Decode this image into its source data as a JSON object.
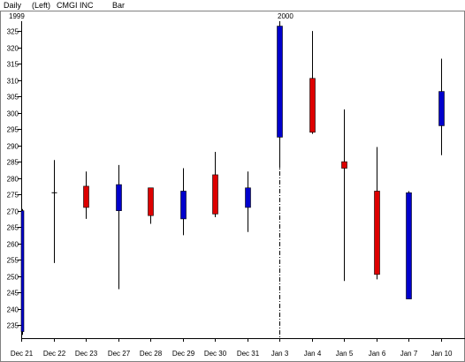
{
  "header": {
    "interval": "Daily",
    "axis_side": "(Left)",
    "symbol": "CMGI INC",
    "style": "Bar",
    "year_start": "1999",
    "year_break": "2000"
  },
  "colors": {
    "up": "#0000cc",
    "down": "#dd0000",
    "doji": "#000000",
    "axis": "#000000",
    "border": "#808080",
    "background": "#ffffff"
  },
  "chart_data": {
    "type": "candlestick",
    "title": "",
    "y_axis_side": "left",
    "ylim": [
      231,
      328
    ],
    "yticks": [
      235,
      240,
      245,
      250,
      255,
      260,
      265,
      270,
      275,
      280,
      285,
      290,
      295,
      300,
      305,
      310,
      315,
      320,
      325
    ],
    "year_break_after": "Dec 31",
    "categories": [
      "Dec 21",
      "Dec 22",
      "Dec 23",
      "Dec 27",
      "Dec 28",
      "Dec 29",
      "Dec 30",
      "Dec 31",
      "Jan 3",
      "Jan 4",
      "Jan 5",
      "Jan 6",
      "Jan 7",
      "Jan 10"
    ],
    "candles": [
      {
        "date": "Dec 21",
        "open": 233,
        "high": 270.5,
        "low": 232,
        "close": 270
      },
      {
        "date": "Dec 22",
        "open": 275.5,
        "high": 285.5,
        "low": 254,
        "close": 275.5
      },
      {
        "date": "Dec 23",
        "open": 277.5,
        "high": 282,
        "low": 267.5,
        "close": 271
      },
      {
        "date": "Dec 27",
        "open": 270,
        "high": 284,
        "low": 246,
        "close": 278
      },
      {
        "date": "Dec 28",
        "open": 277,
        "high": 277,
        "low": 266,
        "close": 268.5
      },
      {
        "date": "Dec 29",
        "open": 267.5,
        "high": 283,
        "low": 262.5,
        "close": 276
      },
      {
        "date": "Dec 30",
        "open": 281,
        "high": 288,
        "low": 268,
        "close": 269
      },
      {
        "date": "Dec 31",
        "open": 271,
        "high": 282,
        "low": 263.5,
        "close": 277
      },
      {
        "date": "Jan 3",
        "open": 292.5,
        "high": 327,
        "low": 283,
        "close": 326.5
      },
      {
        "date": "Jan 4",
        "open": 310.5,
        "high": 325,
        "low": 293.5,
        "close": 294
      },
      {
        "date": "Jan 5",
        "open": 285,
        "high": 301,
        "low": 248.5,
        "close": 283
      },
      {
        "date": "Jan 6",
        "open": 276,
        "high": 289.5,
        "low": 249,
        "close": 250.5
      },
      {
        "date": "Jan 7",
        "open": 243,
        "high": 276,
        "low": 243,
        "close": 275.5
      },
      {
        "date": "Jan 10",
        "open": 296,
        "high": 316.5,
        "low": 287,
        "close": 306.5
      }
    ]
  }
}
